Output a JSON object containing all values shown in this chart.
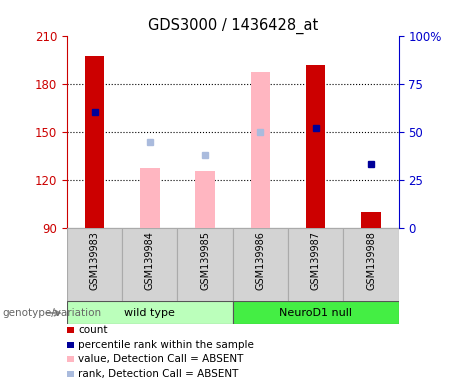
{
  "title": "GDS3000 / 1436428_at",
  "samples": [
    "GSM139983",
    "GSM139984",
    "GSM139985",
    "GSM139986",
    "GSM139987",
    "GSM139988"
  ],
  "ylim_left": [
    90,
    210
  ],
  "ylim_right": [
    0,
    100
  ],
  "yticks_left": [
    90,
    120,
    150,
    180,
    210
  ],
  "yticks_right": [
    0,
    25,
    50,
    75,
    100
  ],
  "yticklabels_right": [
    "0",
    "25",
    "50",
    "75",
    "100%"
  ],
  "left_color": "#CC0000",
  "right_color": "#0000CC",
  "count_values": [
    198,
    null,
    null,
    null,
    192,
    100
  ],
  "count_absent_bar": [
    null,
    128,
    126,
    null,
    null,
    null
  ],
  "absent_bar_gsm139986": 188,
  "rank_values": [
    163,
    null,
    null,
    null,
    153,
    130
  ],
  "rank_absent_dot": [
    null,
    144,
    136,
    150,
    null,
    null
  ],
  "bar_width": 0.35,
  "absent_bar_color": "#FFB6C1",
  "absent_dot_color": "#AABBDD",
  "rank_dot_color": "#000099",
  "legend_items": [
    {
      "label": "count",
      "color": "#CC0000"
    },
    {
      "label": "percentile rank within the sample",
      "color": "#000099"
    },
    {
      "label": "value, Detection Call = ABSENT",
      "color": "#FFB6C1"
    },
    {
      "label": "rank, Detection Call = ABSENT",
      "color": "#AABBDD"
    }
  ],
  "x_positions": [
    0,
    1,
    2,
    3,
    4,
    5
  ],
  "plot_bg_color": "#FFFFFF",
  "tick_label_color_left": "#CC0000",
  "tick_label_color_right": "#0000CC",
  "genotype_label": "genotype/variation",
  "wt_color_light": "#CCFFCC",
  "wt_color_dark": "#44EE44",
  "nd_color_light": "#AAFFAA",
  "nd_color_dark": "#22DD22",
  "cell_color": "#D3D3D3",
  "cell_edge_color": "#AAAAAA"
}
